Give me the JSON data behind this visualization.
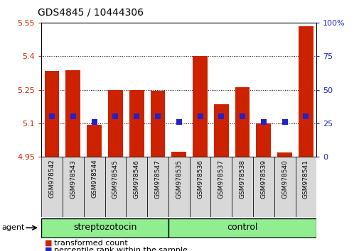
{
  "title": "GDS4845 / 10444306",
  "samples": [
    "GSM978542",
    "GSM978543",
    "GSM978544",
    "GSM978545",
    "GSM978546",
    "GSM978547",
    "GSM978535",
    "GSM978536",
    "GSM978537",
    "GSM978538",
    "GSM978539",
    "GSM978540",
    "GSM978541"
  ],
  "transformed_counts": [
    5.335,
    5.337,
    5.093,
    5.25,
    5.248,
    5.245,
    4.972,
    5.4,
    5.185,
    5.26,
    5.1,
    4.97,
    5.535
  ],
  "percentile_rank_y": [
    5.13,
    5.13,
    5.107,
    5.13,
    5.13,
    5.13,
    5.107,
    5.13,
    5.13,
    5.13,
    5.107,
    5.107,
    5.13
  ],
  "groups": [
    "streptozotocin",
    "streptozotocin",
    "streptozotocin",
    "streptozotocin",
    "streptozotocin",
    "streptozotocin",
    "control",
    "control",
    "control",
    "control",
    "control",
    "control",
    "control"
  ],
  "n_strep": 6,
  "n_ctrl": 7,
  "ylim_left": [
    4.95,
    5.55
  ],
  "ylim_right": [
    0,
    100
  ],
  "yticks_left": [
    4.95,
    5.1,
    5.25,
    5.4,
    5.55
  ],
  "yticks_left_labels": [
    "4.95",
    "5.1",
    "5.25",
    "5.4",
    "5.55"
  ],
  "yticks_right": [
    0,
    25,
    50,
    75,
    100
  ],
  "yticks_right_labels": [
    "0",
    "25",
    "50",
    "75",
    "100%"
  ],
  "bar_color": "#CC2200",
  "dot_color": "#2222CC",
  "bar_bottom": 4.95,
  "streptozotocin_label": "streptozotocin",
  "control_label": "control",
  "group_fill": "#90EE90",
  "legend_items": [
    "transformed count",
    "percentile rank within the sample"
  ],
  "bar_width": 0.7,
  "title_fontsize": 10,
  "axis_fontsize": 8,
  "label_fontsize": 6.5,
  "group_fontsize": 9,
  "legend_fontsize": 8
}
